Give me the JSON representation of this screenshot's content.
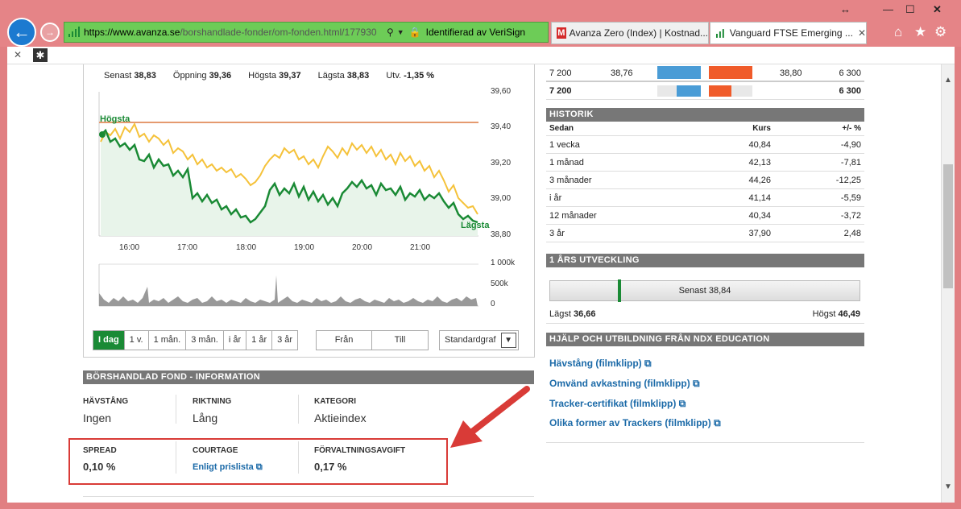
{
  "browser": {
    "url_host": "https://www.avanza.se",
    "url_path": "/borshandlade-fonder/om-fonden.html/177930",
    "identity": "Identifierad av VeriSign",
    "tabs": [
      {
        "label": "Avanza Zero (Index) | Kostnad..."
      },
      {
        "label": "Vanguard FTSE Emerging ..."
      }
    ],
    "back_icon": "arrow-left-icon",
    "forward_icon": "arrow-right-icon"
  },
  "quote": {
    "senast_label": "Senast",
    "senast": "38,83",
    "oppning_label": "Öppning",
    "oppning": "39,36",
    "hogsta_label": "Högsta",
    "hogsta": "39,37",
    "lagsta_label": "Lägsta",
    "lagsta": "38,83",
    "utv_label": "Utv.",
    "utv": "-1,35 %"
  },
  "chart_data": {
    "type": "line",
    "x": [
      "16:00",
      "17:00",
      "18:00",
      "19:00",
      "20:00",
      "21:00"
    ],
    "ylim": [
      38.8,
      39.6
    ],
    "yticks": [
      "39,60",
      "39,40",
      "39,20",
      "39,00",
      "38,80"
    ],
    "volume_ticks": [
      "1 000k",
      "500k",
      "0"
    ],
    "high_label": "Högsta",
    "low_label": "Lägsta",
    "series": [],
    "colors": {
      "price": "#1a8a35",
      "index": "#f5c23a",
      "highline": "#e59a6f",
      "fill": "#e8f4ea"
    }
  },
  "range_buttons": [
    "I dag",
    "1 v.",
    "1 mån.",
    "3 mån.",
    "i år",
    "1 år",
    "3 år"
  ],
  "from_label": "Från",
  "to_label": "Till",
  "chart_type": "Standardgraf",
  "info": {
    "header": "BÖRSHANDLAD FOND - INFORMATION",
    "havstang_label": "HÄVSTÅNG",
    "havstang": "Ingen",
    "riktning_label": "RIKTNING",
    "riktning": "Lång",
    "kategori_label": "KATEGORI",
    "kategori": "Aktieindex",
    "spread_label": "SPREAD",
    "spread": "0,10 %",
    "courtage_label": "COURTAGE",
    "courtage": "Enligt prislista",
    "avgift_label": "FÖRVALTNINGSAVGIFT",
    "avgift": "0,17 %"
  },
  "orderbook": [
    {
      "qty": "7 200",
      "bid": "38,76",
      "ask": "38,80",
      "askqty": "6 300"
    },
    {
      "qty": "7 200",
      "askqty": "6 300"
    }
  ],
  "historik": {
    "header": "HISTORIK",
    "col_sedan": "Sedan",
    "col_kurs": "Kurs",
    "col_pct": "+/- %",
    "rows": [
      {
        "p": "1 vecka",
        "k": "40,84",
        "c": "-4,90"
      },
      {
        "p": "1 månad",
        "k": "42,13",
        "c": "-7,81"
      },
      {
        "p": "3 månader",
        "k": "44,26",
        "c": "-12,25"
      },
      {
        "p": "i år",
        "k": "41,14",
        "c": "-5,59"
      },
      {
        "p": "12 månader",
        "k": "40,34",
        "c": "-3,72"
      },
      {
        "p": "3 år",
        "k": "37,90",
        "c": "2,48"
      }
    ]
  },
  "utveckling": {
    "header": "1 ÅRS UTVECKLING",
    "senast": "Senast 38,84",
    "lagst_label": "Lägst",
    "lagst": "36,66",
    "hogst_label": "Högst",
    "hogst": "46,49",
    "position_fraction": 0.22
  },
  "hjalp": {
    "header": "HJÄLP OCH UTBILDNING FRÅN NDX EDUCATION",
    "links": [
      "Hävstång (filmklipp)",
      "Omvänd avkastning (filmklipp)",
      "Tracker-certifikat (filmklipp)",
      "Olika former av Trackers (filmklipp)"
    ]
  }
}
